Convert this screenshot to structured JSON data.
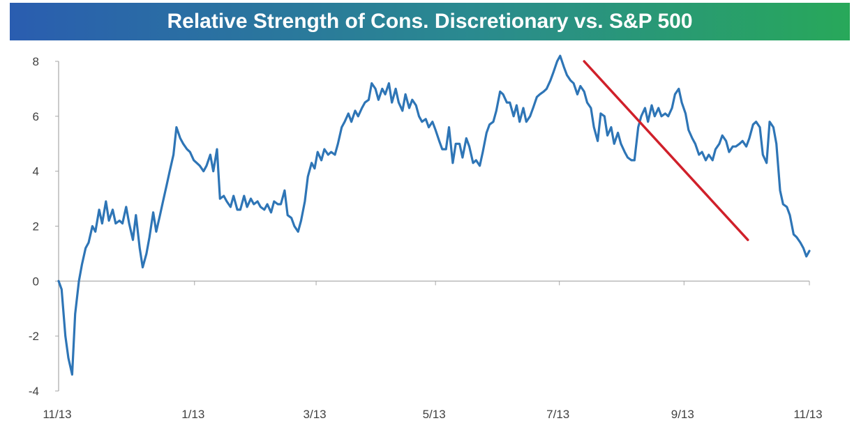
{
  "title": "Relative Strength of Cons. Discretionary vs. S&P 500",
  "colors": {
    "series": "#2e75b6",
    "trendline": "#d0202a",
    "axis": "#a6a6a6",
    "tick_text": "#404040"
  },
  "chart_data": {
    "type": "line",
    "title": "Relative Strength of Cons. Discretionary vs. S&P 500",
    "xlabel": "",
    "ylabel": "",
    "ylim": [
      -4,
      8
    ],
    "yticks": [
      -4,
      -2,
      0,
      2,
      4,
      6,
      8
    ],
    "xlim": [
      0,
      100
    ],
    "xtick_positions": [
      0,
      18.1,
      34.3,
      50.2,
      66.7,
      83.3,
      100
    ],
    "xtick_labels": [
      "11/13",
      "1/13",
      "3/13",
      "5/13",
      "7/13",
      "9/13",
      "11/13"
    ],
    "grid": false,
    "legend": "none",
    "series": [
      {
        "x": [
          0,
          0.4,
          0.9,
          1.3,
          1.8,
          2.2,
          2.7,
          3.1,
          3.6,
          4.0,
          4.5,
          4.9,
          5.4,
          5.8,
          6.3,
          6.7,
          7.2,
          7.6,
          8.1,
          8.5,
          9.0,
          9.4,
          9.9,
          10.3,
          10.8,
          11.2,
          11.7,
          12.1,
          12.6,
          13.0,
          13.5,
          13.9,
          14.4,
          14.8,
          15.3,
          15.7,
          16.2,
          16.6,
          17.1,
          17.5,
          18.0,
          18.4,
          18.8,
          19.3,
          19.7,
          20.2,
          20.6,
          21.1,
          21.5,
          22.0,
          22.4,
          22.9,
          23.3,
          23.8,
          24.2,
          24.7,
          25.1,
          25.6,
          26.0,
          26.5,
          26.9,
          27.4,
          27.8,
          28.3,
          28.7,
          29.2,
          29.6,
          30.1,
          30.5,
          31.0,
          31.4,
          31.9,
          32.3,
          32.8,
          33.2,
          33.7,
          34.1,
          34.5,
          35.0,
          35.4,
          35.9,
          36.3,
          36.8,
          37.2,
          37.7,
          38.1,
          38.6,
          39.0,
          39.5,
          39.9,
          40.4,
          40.8,
          41.3,
          41.7,
          42.2,
          42.6,
          43.1,
          43.5,
          44.0,
          44.4,
          44.9,
          45.3,
          45.8,
          46.2,
          46.7,
          47.1,
          47.6,
          48.0,
          48.4,
          48.9,
          49.3,
          49.8,
          50.2,
          50.7,
          51.1,
          51.6,
          52.0,
          52.5,
          52.9,
          53.4,
          53.8,
          54.3,
          54.7,
          55.2,
          55.6,
          56.1,
          56.5,
          57.0,
          57.4,
          57.9,
          58.3,
          58.8,
          59.2,
          59.7,
          60.1,
          60.6,
          61.0,
          61.4,
          61.9,
          62.3,
          62.8,
          63.2,
          63.7,
          64.1,
          64.6,
          65.0,
          65.5,
          65.9,
          66.4,
          66.8,
          67.3,
          67.7,
          68.2,
          68.6,
          69.1,
          69.5,
          70.0,
          70.4,
          70.9,
          71.3,
          71.8,
          72.2,
          72.7,
          73.1,
          73.6,
          74.0,
          74.5,
          74.9,
          75.4,
          75.8,
          76.3,
          76.7,
          77.2,
          77.6,
          78.1,
          78.5,
          79.0,
          79.4,
          79.9,
          80.3,
          80.8,
          81.2,
          81.7,
          82.1,
          82.6,
          83.0,
          83.5,
          83.9,
          84.4,
          84.8,
          85.3,
          85.7,
          86.2,
          86.6,
          87.1,
          87.5,
          88.0,
          88.4,
          88.9,
          89.3,
          89.8,
          90.2,
          90.7,
          91.1,
          91.6,
          92.0,
          92.5,
          92.9,
          93.4,
          93.8,
          94.3,
          94.7,
          95.2,
          95.6,
          96.1,
          96.5,
          97.0,
          97.4,
          97.9,
          98.3,
          98.8,
          99.2,
          99.6,
          100
        ],
        "y": [
          0.0,
          -0.3,
          -2.0,
          -2.8,
          -3.4,
          -1.2,
          0.0,
          0.6,
          1.2,
          1.4,
          2.0,
          1.8,
          2.6,
          2.1,
          2.9,
          2.2,
          2.6,
          2.1,
          2.2,
          2.1,
          2.7,
          2.1,
          1.5,
          2.4,
          1.2,
          0.5,
          1.0,
          1.6,
          2.5,
          1.8,
          2.4,
          2.9,
          3.5,
          4.0,
          4.6,
          5.6,
          5.2,
          5.0,
          4.8,
          4.7,
          4.4,
          4.3,
          4.2,
          4.0,
          4.2,
          4.6,
          4.0,
          4.8,
          3.0,
          3.1,
          2.9,
          2.7,
          3.1,
          2.6,
          2.6,
          3.1,
          2.7,
          3.0,
          2.8,
          2.9,
          2.7,
          2.6,
          2.8,
          2.5,
          2.9,
          2.8,
          2.8,
          3.3,
          2.4,
          2.3,
          2.0,
          1.8,
          2.2,
          2.9,
          3.8,
          4.3,
          4.1,
          4.7,
          4.4,
          4.8,
          4.6,
          4.7,
          4.6,
          5.0,
          5.6,
          5.8,
          6.1,
          5.8,
          6.2,
          6.0,
          6.3,
          6.5,
          6.6,
          7.2,
          7.0,
          6.6,
          7.0,
          6.8,
          7.2,
          6.5,
          7.0,
          6.5,
          6.2,
          6.8,
          6.3,
          6.6,
          6.4,
          6.0,
          5.8,
          5.9,
          5.6,
          5.8,
          5.5,
          5.1,
          4.8,
          4.8,
          5.6,
          4.3,
          5.0,
          5.0,
          4.5,
          5.2,
          4.9,
          4.3,
          4.4,
          4.2,
          4.7,
          5.4,
          5.7,
          5.8,
          6.2,
          6.9,
          6.8,
          6.5,
          6.5,
          6.0,
          6.4,
          5.8,
          6.3,
          5.8,
          6.0,
          6.3,
          6.7,
          6.8,
          6.9,
          7.0,
          7.3,
          7.6,
          8.0,
          8.2,
          7.8,
          7.5,
          7.3,
          7.2,
          6.8,
          7.1,
          6.9,
          6.5,
          6.3,
          5.6,
          5.1,
          6.1,
          6.0,
          5.3,
          5.6,
          5.0,
          5.4,
          5.0,
          4.7,
          4.5,
          4.4,
          4.4,
          5.6,
          6.0,
          6.3,
          5.8,
          6.4,
          6.0,
          6.3,
          6.0,
          6.1,
          6.0,
          6.3,
          6.8,
          7.0,
          6.5,
          6.1,
          5.5,
          5.2,
          5.0,
          4.6,
          4.7,
          4.4,
          4.6,
          4.4,
          4.8,
          5.0,
          5.3,
          5.1,
          4.7,
          4.9,
          4.9,
          5.0,
          5.1,
          4.9,
          5.2,
          5.7,
          5.8,
          5.6,
          4.6,
          4.3,
          5.8,
          5.6,
          5.0,
          3.3,
          2.8,
          2.7,
          2.4,
          1.7,
          1.6,
          1.4,
          1.2,
          0.9,
          1.1
        ]
      }
    ],
    "trendline": {
      "from": [
        70.0,
        8.0
      ],
      "to": [
        91.8,
        1.5
      ]
    }
  }
}
